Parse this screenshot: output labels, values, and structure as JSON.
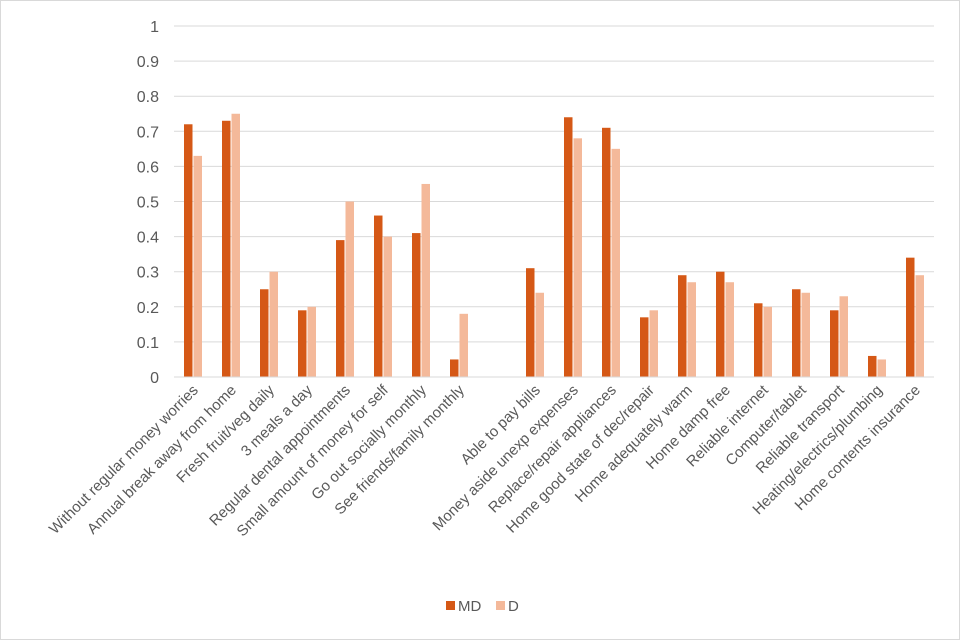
{
  "chart_data": {
    "type": "bar",
    "title": "",
    "xlabel": "",
    "ylabel": "",
    "ylim": [
      0,
      1
    ],
    "yticks": [
      "0",
      "0.1",
      "0.2",
      "0.3",
      "0.4",
      "0.5",
      "0.6",
      "0.7",
      "0.8",
      "0.9",
      "1"
    ],
    "grid": true,
    "legend_position": "bottom-center",
    "categories": [
      "Without regular money worries",
      "Annual break away from home",
      "Fresh fruit/veg daily",
      "3 meals a day",
      "Regular dental appointments",
      "Small amount of money for self",
      "Go out socially monthly",
      "See friends/family monthly",
      "",
      "Able to pay bills",
      "Money aside unexp expenses",
      "Replace/repair appliances",
      "Home good state of dec/repair",
      "Home adequately warm",
      "Home damp free",
      "Reliable internet",
      "Computer/tablet",
      "Reliable transport",
      "Heating/electrics/plumbing",
      "Home contents insurance"
    ],
    "series": [
      {
        "name": "MD",
        "color": "#d55816",
        "values": [
          0.72,
          0.73,
          0.25,
          0.19,
          0.39,
          0.46,
          0.41,
          0.05,
          null,
          0.31,
          0.74,
          0.71,
          0.17,
          0.29,
          0.3,
          0.21,
          0.25,
          0.19,
          0.06,
          0.34
        ]
      },
      {
        "name": "D",
        "color": "#f4b99a",
        "values": [
          0.63,
          0.75,
          0.3,
          0.2,
          0.5,
          0.4,
          0.55,
          0.18,
          null,
          0.24,
          0.68,
          0.65,
          0.19,
          0.27,
          0.27,
          0.2,
          0.24,
          0.23,
          0.05,
          0.29
        ]
      }
    ]
  }
}
